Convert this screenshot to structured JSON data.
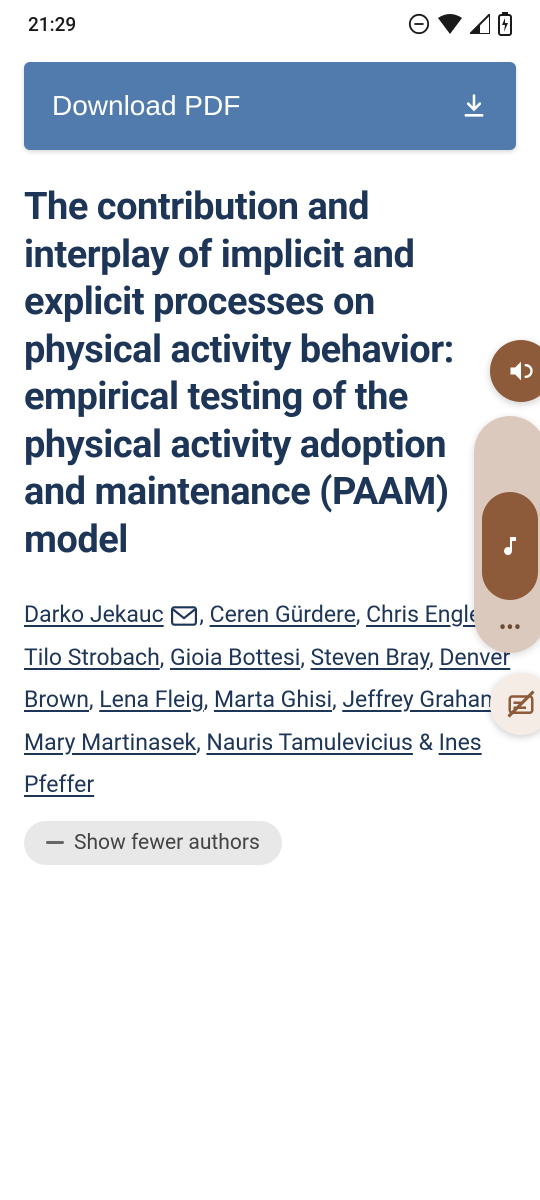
{
  "statusbar": {
    "time": "21:29"
  },
  "download": {
    "label": "Download PDF"
  },
  "article": {
    "title": "The contribution and interplay of implicit and explicit processes on physical activity behavior: empirical testing of the physical activity adoption and maintenance (PAAM) model",
    "authors": [
      "Darko Jekauc",
      "Ceren Gürdere",
      "Chris Englert",
      "Tilo Strobach",
      "Gioia Bottesi",
      "Steven Bray",
      "Denver Brown",
      "Lena Fleig",
      "Marta Ghisi",
      "Jeffrey Graham",
      "Mary Martinasek",
      "Nauris Tamulevicius",
      "Ines Pfeffer"
    ],
    "separator_last": " & ",
    "separator": ", ",
    "corresponding_index": 0,
    "show_fewer_label": "Show fewer authors"
  },
  "colors": {
    "primary_button": "#517bad",
    "title_text": "#1d3557",
    "fab_brown": "#8d5b3a",
    "pill_bg": "#dcc9bd",
    "chip_bg": "#e8e8e8"
  }
}
